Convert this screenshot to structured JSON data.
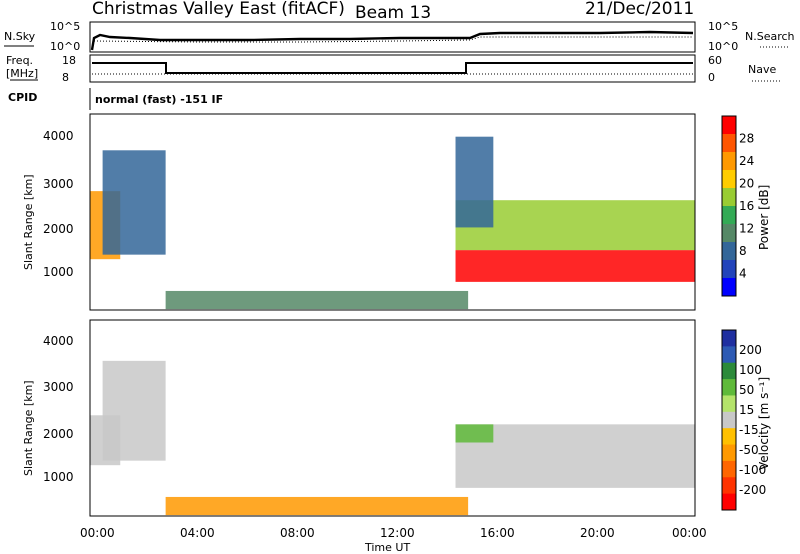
{
  "header": {
    "title": "Christmas Valley East (fitACF)",
    "beam": "Beam 13",
    "date": "21/Dec/2011"
  },
  "panels": {
    "nsky_label": "N.Sky",
    "nsearch_label": "N.Search",
    "nsky_ticks": [
      "10^5",
      "10^0"
    ],
    "nsearch_ticks": [
      "10^5",
      "10^0"
    ],
    "freq_label": "Freq.",
    "freq_unit": "[MHz]",
    "freq_ticks": [
      "18",
      "8"
    ],
    "nave_label": "Nave",
    "nave_ticks": [
      "60",
      "0"
    ],
    "cpid_label": "CPID",
    "cpid_text": "normal (fast) -151 IF"
  },
  "axes": {
    "ylabel": "Slant Range [km]",
    "xlabel": "Time UT",
    "yticks": [
      "4000",
      "3000",
      "2000",
      "1000"
    ],
    "xticks": [
      "00:00",
      "04:00",
      "08:00",
      "12:00",
      "16:00",
      "20:00",
      "00:00"
    ]
  },
  "colorbars": {
    "power": {
      "label": "Power [dB]",
      "ticks": [
        "28",
        "24",
        "20",
        "16",
        "12",
        "8",
        "4"
      ],
      "colors": [
        "#ff0000",
        "#ff5500",
        "#ff9900",
        "#ffcc00",
        "#99cc33",
        "#33aa55",
        "#558866",
        "#336699",
        "#2244bb",
        "#0000ff"
      ]
    },
    "velocity": {
      "label": "Velocity [m s⁻¹]",
      "ticks": [
        "200",
        "100",
        "50",
        "15",
        "-15",
        "-50",
        "-100",
        "-200"
      ],
      "colors": [
        "#1f2fa0",
        "#2d5ab4",
        "#2c8a3a",
        "#5fba3a",
        "#b4e36a",
        "#c8c8c8",
        "#ffc000",
        "#ff9900",
        "#ff6600",
        "#ff3300",
        "#ff0000"
      ]
    }
  },
  "chart_data": [
    {
      "type": "heatmap",
      "title": "Power",
      "xlabel": "Time UT",
      "ylabel": "Slant Range [km]",
      "xlim": [
        "00:00",
        "24:00"
      ],
      "ylim": [
        180,
        4500
      ],
      "colorbar_label": "Power [dB]",
      "colorbar_ticks": [
        28,
        24,
        20,
        16,
        12,
        8,
        4
      ],
      "regions": [
        {
          "t_start": 0.0,
          "t_end": 1.2,
          "range_low": 1300,
          "range_high": 2800,
          "power_db": 22
        },
        {
          "t_start": 0.5,
          "t_end": 3.0,
          "range_low": 1400,
          "range_high": 3700,
          "power_db": 6
        },
        {
          "t_start": 3.0,
          "t_end": 15.0,
          "range_low": 200,
          "range_high": 600,
          "power_db": 8
        },
        {
          "t_start": 14.5,
          "t_end": 24.0,
          "range_low": 800,
          "range_high": 1500,
          "power_db": 28
        },
        {
          "t_start": 14.5,
          "t_end": 24.0,
          "range_low": 1500,
          "range_high": 2600,
          "power_db": 14
        },
        {
          "t_start": 14.5,
          "t_end": 16.0,
          "range_low": 2000,
          "range_high": 4000,
          "power_db": 6
        }
      ]
    },
    {
      "type": "heatmap",
      "title": "Velocity",
      "xlabel": "Time UT",
      "ylabel": "Slant Range [km]",
      "xlim": [
        "00:00",
        "24:00"
      ],
      "ylim": [
        180,
        4500
      ],
      "colorbar_label": "Velocity [m s⁻¹]",
      "colorbar_ticks": [
        200,
        100,
        50,
        15,
        -15,
        -50,
        -100,
        -200
      ],
      "regions": [
        {
          "t_start": 0.0,
          "t_end": 1.2,
          "range_low": 1300,
          "range_high": 2400,
          "velocity_ms": 0
        },
        {
          "t_start": 0.5,
          "t_end": 3.0,
          "range_low": 1400,
          "range_high": 3600,
          "velocity_ms": -15
        },
        {
          "t_start": 3.0,
          "t_end": 15.0,
          "range_low": 200,
          "range_high": 600,
          "velocity_ms": -40
        },
        {
          "t_start": 14.5,
          "t_end": 24.0,
          "range_low": 800,
          "range_high": 2200,
          "velocity_ms": 0
        },
        {
          "t_start": 14.5,
          "t_end": 16.0,
          "range_low": 1800,
          "range_high": 2200,
          "velocity_ms": 40
        }
      ]
    }
  ]
}
